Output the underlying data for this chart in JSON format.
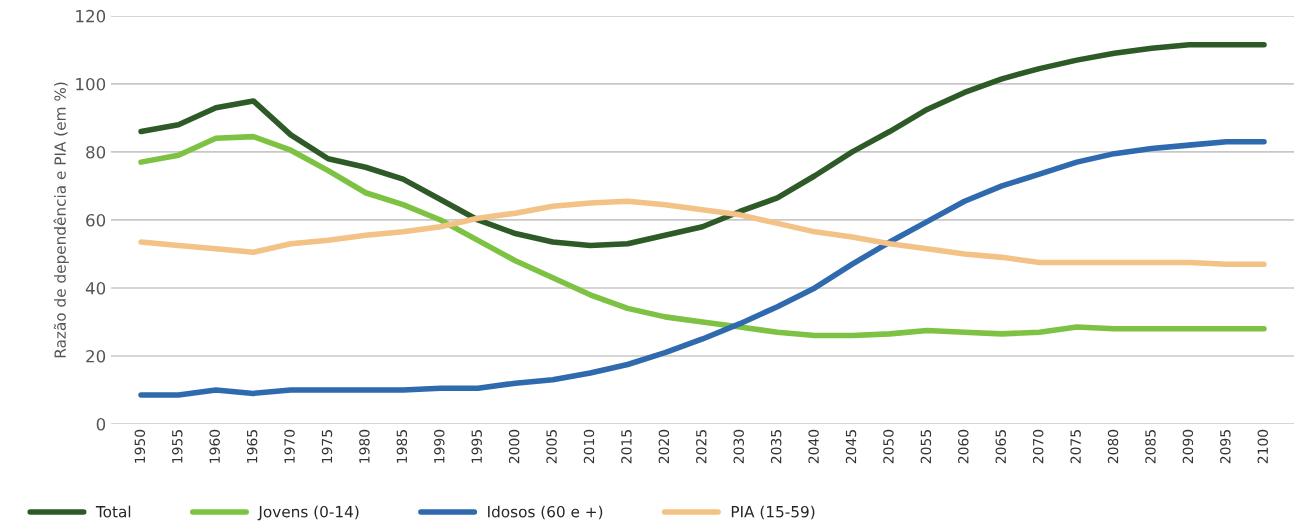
{
  "chart_data": {
    "type": "line",
    "ylabel": "Razão de dependência e PIA (em %)",
    "categories": [
      "1950",
      "1955",
      "1960",
      "1965",
      "1970",
      "1975",
      "1980",
      "1985",
      "1990",
      "1995",
      "2000",
      "2005",
      "2010",
      "2015",
      "2020",
      "2025",
      "2030",
      "2035",
      "2040",
      "2045",
      "2050",
      "2055",
      "2060",
      "2065",
      "2070",
      "2075",
      "2080",
      "2085",
      "2090",
      "2095",
      "2100"
    ],
    "series": [
      {
        "name": "Total",
        "color": "#2d5a27",
        "values": [
          86,
          88,
          93,
          95,
          85,
          78,
          75.5,
          72,
          66,
          60,
          56,
          53.5,
          52.5,
          53,
          55.5,
          58,
          62.5,
          66.5,
          73,
          80,
          86,
          92.5,
          97.5,
          101.5,
          104.5,
          107,
          109,
          110.5,
          111.5,
          111.5,
          111.5
        ]
      },
      {
        "name": "Jovens (0-14)",
        "color": "#7dc243",
        "values": [
          77,
          79,
          84,
          84.5,
          80.5,
          74.5,
          68,
          64.5,
          60,
          54,
          48,
          43,
          38,
          34,
          31.5,
          30,
          28.5,
          27,
          26,
          26,
          26.5,
          27.5,
          27,
          26.5,
          27,
          28.5,
          28,
          28,
          28,
          28,
          28
        ]
      },
      {
        "name": "Idosos (60 e +)",
        "color": "#2e6aad",
        "values": [
          8.5,
          8.5,
          10,
          9,
          10,
          10,
          10,
          10,
          10.5,
          10.5,
          12,
          13,
          15,
          17.5,
          21,
          25,
          29.5,
          34.5,
          40,
          47,
          53.5,
          59.5,
          65.5,
          70,
          73.5,
          77,
          79.5,
          81,
          82,
          83,
          83
        ]
      },
      {
        "name": "PIA (15-59)",
        "color": "#f3c286",
        "values": [
          53.5,
          52.5,
          51.5,
          50.5,
          53,
          54,
          55.5,
          56.5,
          58,
          60.5,
          62,
          64,
          65,
          65.5,
          64.5,
          63,
          61.5,
          59,
          56.5,
          55,
          53,
          51.5,
          50,
          49,
          47.5,
          47.5,
          47.5,
          47.5,
          47.5,
          47,
          47
        ]
      }
    ],
    "ylim": [
      0,
      120
    ],
    "yticks": [
      0,
      20,
      40,
      60,
      80,
      100,
      120
    ],
    "grid": "y",
    "legend": "bottom left",
    "marker": "none",
    "line_style": "solid"
  }
}
